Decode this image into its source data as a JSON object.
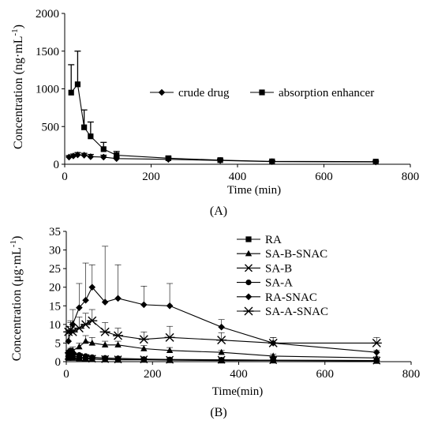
{
  "chart_data": [
    {
      "type": "line",
      "panel_label": "(A)",
      "xlabel": "Time (min)",
      "ylabel": "Concentration (ng·mL-1)",
      "ylabel_main": "Concentration (ng·mL",
      "ylabel_sup": "-1",
      "ylabel_close": ")",
      "xlim": [
        0,
        800
      ],
      "ylim": [
        0,
        2000
      ],
      "xticks": [
        0,
        200,
        400,
        600,
        800
      ],
      "yticks": [
        0,
        500,
        1000,
        1500,
        2000
      ],
      "grid": false,
      "legend_position": "top-right",
      "series": [
        {
          "name": "crude drug",
          "marker": "diamond",
          "x": [
            10,
            20,
            30,
            45,
            60,
            90,
            120,
            240,
            360,
            480,
            720
          ],
          "y": [
            95,
            110,
            125,
            120,
            100,
            95,
            75,
            65,
            50,
            35,
            30
          ],
          "err": [
            20,
            25,
            30,
            25,
            30,
            25,
            20,
            20,
            15,
            10,
            10
          ]
        },
        {
          "name": "absorption enhancer",
          "marker": "square",
          "x": [
            15,
            30,
            45,
            60,
            90,
            120,
            240,
            360,
            480,
            720
          ],
          "y": [
            950,
            1060,
            490,
            370,
            200,
            120,
            80,
            55,
            38,
            35
          ],
          "err": [
            370,
            440,
            230,
            190,
            90,
            50,
            25,
            15,
            10,
            10
          ]
        }
      ]
    },
    {
      "type": "line",
      "panel_label": "(B)",
      "xlabel": "Time(min)",
      "ylabel": "Concentration (μg·mL-1)",
      "ylabel_main": "Concentration (μg·mL",
      "ylabel_sup": "-1",
      "ylabel_close": ")",
      "xlim": [
        0,
        800
      ],
      "ylim": [
        0,
        35
      ],
      "xticks": [
        0,
        200,
        400,
        600,
        800
      ],
      "yticks": [
        0,
        5,
        10,
        15,
        20,
        25,
        30,
        35
      ],
      "grid": false,
      "legend_position": "top-right",
      "series": [
        {
          "name": "RA",
          "marker": "square",
          "x": [
            5,
            10,
            15,
            30,
            45,
            60,
            90,
            120,
            180,
            240,
            360,
            480,
            720
          ],
          "y": [
            1.0,
            1.2,
            1.0,
            0.9,
            0.8,
            0.7,
            0.6,
            0.5,
            0.5,
            0.4,
            0.3,
            0.3,
            0.2
          ],
          "err": [
            0.3,
            0.3,
            0.3,
            0.2,
            0.2,
            0.2,
            0.2,
            0.1,
            0.1,
            0.1,
            0.1,
            0.1,
            0.1
          ]
        },
        {
          "name": "SA-B-SNAC",
          "marker": "triangle",
          "x": [
            5,
            10,
            15,
            30,
            45,
            60,
            90,
            120,
            180,
            240,
            360,
            480,
            720
          ],
          "y": [
            2.0,
            2.5,
            3.0,
            4.0,
            5.5,
            5.0,
            4.5,
            4.5,
            3.5,
            3.0,
            2.5,
            1.5,
            1.0
          ],
          "err": [
            0.5,
            0.8,
            1.0,
            1.0,
            1.5,
            1.5,
            1.0,
            1.0,
            0.8,
            0.8,
            0.5,
            0.5,
            0.3
          ]
        },
        {
          "name": "SA-B",
          "marker": "x",
          "x": [
            5,
            10,
            15,
            30,
            45,
            60,
            90,
            120,
            180,
            240,
            360,
            480,
            720
          ],
          "y": [
            1.5,
            1.8,
            1.5,
            1.2,
            1.0,
            0.8,
            0.7,
            0.6,
            0.6,
            0.5,
            0.5,
            0.4,
            0.3
          ],
          "err": [
            0.3,
            0.4,
            0.3,
            0.3,
            0.2,
            0.2,
            0.2,
            0.2,
            0.2,
            0.1,
            0.1,
            0.1,
            0.1
          ]
        },
        {
          "name": "SA-A",
          "marker": "circle",
          "x": [
            5,
            10,
            15,
            30,
            45,
            60,
            90,
            120,
            180,
            240,
            360,
            480,
            720
          ],
          "y": [
            2.5,
            3.0,
            2.0,
            1.8,
            1.5,
            1.2,
            1.0,
            0.9,
            0.7,
            0.6,
            0.5,
            0.4,
            0.3
          ],
          "err": [
            0.5,
            0.6,
            0.5,
            0.4,
            0.3,
            0.3,
            0.2,
            0.2,
            0.2,
            0.1,
            0.1,
            0.1,
            0.1
          ]
        },
        {
          "name": "RA-SNAC",
          "marker": "diamond",
          "x": [
            5,
            10,
            15,
            30,
            45,
            60,
            90,
            120,
            180,
            240,
            360,
            480,
            720
          ],
          "y": [
            5.5,
            8.0,
            10.0,
            14.5,
            16.5,
            20.0,
            16.0,
            17.0,
            15.3,
            15.0,
            9.3,
            5.0,
            2.5
          ],
          "err": [
            2.0,
            3.0,
            4.0,
            6.5,
            10.0,
            6.0,
            15.0,
            9.0,
            5.0,
            6.0,
            2.0,
            1.5,
            0.5
          ]
        },
        {
          "name": "SA-A-SNAC",
          "marker": "asterisk",
          "x": [
            5,
            10,
            15,
            30,
            45,
            60,
            90,
            120,
            180,
            240,
            360,
            480,
            720
          ],
          "y": [
            8.0,
            8.5,
            8.0,
            9.0,
            10.0,
            11.0,
            8.0,
            7.0,
            6.0,
            6.5,
            5.8,
            5.0,
            5.0
          ],
          "err": [
            1.5,
            2.0,
            2.0,
            3.0,
            3.0,
            3.0,
            2.5,
            2.0,
            2.0,
            3.0,
            2.0,
            1.5,
            1.5
          ]
        }
      ]
    }
  ]
}
